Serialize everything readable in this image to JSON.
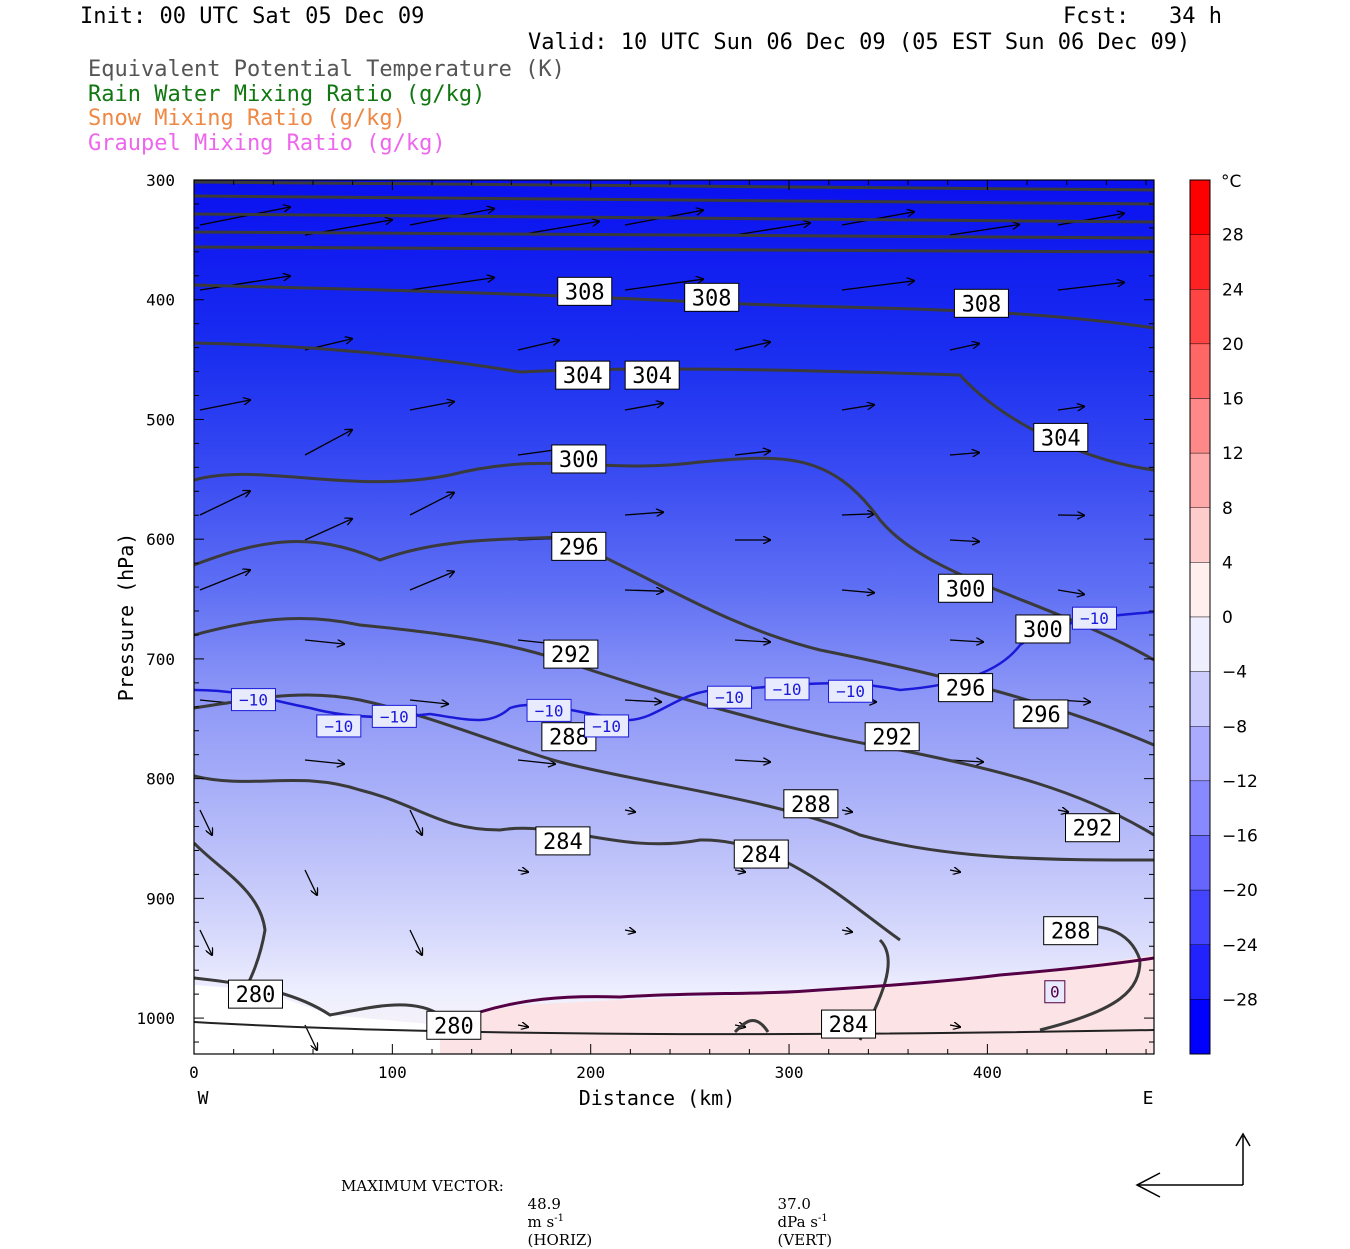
{
  "header": {
    "init": "Init: 00 UTC Sat 05 Dec 09",
    "fcst": "Fcst:   34 h",
    "valid": "Valid: 10 UTC Sun 06 Dec 09 (05 EST Sun 06 Dec 09)"
  },
  "legend": [
    {
      "label": "Equivalent Potential Temperature (K)",
      "color": "#555555"
    },
    {
      "label": "Rain Water Mixing Ratio (g/kg)",
      "color": "#117711"
    },
    {
      "label": "Snow Mixing Ratio (g/kg)",
      "color": "#ee8844"
    },
    {
      "label": "Graupel Mixing Ratio (g/kg)",
      "color": "#ee66ee"
    }
  ],
  "footer": {
    "label": "MAXIMUM VECTOR:",
    "horiz_value": "48.9",
    "horiz_unit": "m s",
    "horiz_exp": "-1",
    "horiz_tag": "(HORIZ)",
    "vert_value": "37.0",
    "vert_unit": "dPa s",
    "vert_exp": "-1",
    "vert_tag": "(VERT)"
  },
  "chart_data": {
    "type": "cross-section contour",
    "xlabel": "Distance (km)",
    "ylabel": "Pressure (hPa)",
    "xlim": [
      0,
      484
    ],
    "ylim": [
      1030,
      300
    ],
    "x_ticks": [
      "0",
      "100",
      "200",
      "300",
      "400"
    ],
    "y_ticks": [
      "300",
      "400",
      "500",
      "600",
      "700",
      "800",
      "900",
      "1000"
    ],
    "x_ends": {
      "left": "W",
      "right": "E"
    },
    "colorbar": {
      "unit": "°C",
      "labels": [
        "28",
        "24",
        "20",
        "16",
        "12",
        "8",
        "4",
        "0",
        "−4",
        "−8",
        "−12",
        "−16",
        "−20",
        "−24",
        "−28"
      ]
    },
    "theta_e_labels": [
      {
        "text": "308",
        "x": 197,
        "p": 393
      },
      {
        "text": "308",
        "x": 261,
        "p": 398
      },
      {
        "text": "308",
        "x": 397,
        "p": 403
      },
      {
        "text": "304",
        "x": 196,
        "p": 463
      },
      {
        "text": "304",
        "x": 231,
        "p": 463
      },
      {
        "text": "304",
        "x": 437,
        "p": 515
      },
      {
        "text": "300",
        "x": 194,
        "p": 533
      },
      {
        "text": "296",
        "x": 194,
        "p": 606
      },
      {
        "text": "300",
        "x": 389,
        "p": 641
      },
      {
        "text": "300",
        "x": 428,
        "p": 675
      },
      {
        "text": "292",
        "x": 190,
        "p": 696
      },
      {
        "text": "296",
        "x": 389,
        "p": 724
      },
      {
        "text": "296",
        "x": 427,
        "p": 746
      },
      {
        "text": "288",
        "x": 189,
        "p": 765
      },
      {
        "text": "292",
        "x": 352,
        "p": 765
      },
      {
        "text": "288",
        "x": 311,
        "p": 821
      },
      {
        "text": "292",
        "x": 453,
        "p": 841
      },
      {
        "text": "284",
        "x": 186,
        "p": 852
      },
      {
        "text": "284",
        "x": 286,
        "p": 863
      },
      {
        "text": "288",
        "x": 442,
        "p": 927
      },
      {
        "text": "280",
        "x": 31,
        "p": 980
      },
      {
        "text": "280",
        "x": 131,
        "p": 1006
      },
      {
        "text": "284",
        "x": 330,
        "p": 1005
      }
    ],
    "temp_labels": [
      {
        "text": "−10",
        "x": 30,
        "p": 734
      },
      {
        "text": "−10",
        "x": 73,
        "p": 756
      },
      {
        "text": "−10",
        "x": 101,
        "p": 748
      },
      {
        "text": "−10",
        "x": 179,
        "p": 743
      },
      {
        "text": "−10",
        "x": 208,
        "p": 756
      },
      {
        "text": "−10",
        "x": 270,
        "p": 732
      },
      {
        "text": "−10",
        "x": 299,
        "p": 725
      },
      {
        "text": "−10",
        "x": 331,
        "p": 727
      },
      {
        "text": "−10",
        "x": 454,
        "p": 666
      },
      {
        "text": "0",
        "x": 434,
        "p": 978
      }
    ]
  }
}
